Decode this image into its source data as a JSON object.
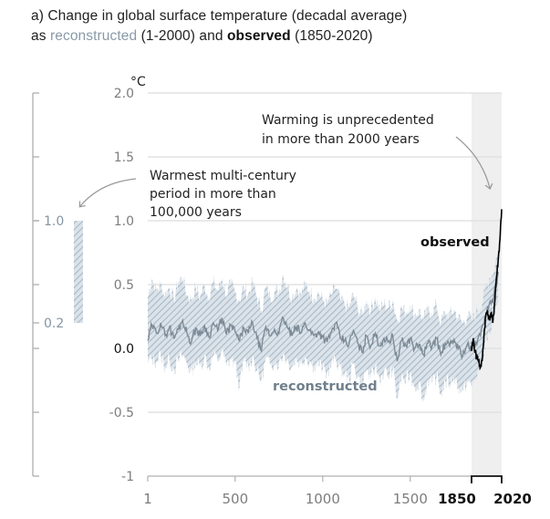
{
  "title": {
    "line1": "a) Change in global surface temperature (decadal average)",
    "line2_prefix": "as ",
    "line2_recon": "reconstructed",
    "line2_mid": " (1-2000) and ",
    "line2_obs": "observed",
    "line2_suffix": " (1850-2020)"
  },
  "colors": {
    "reconstructed_line": "#7d8b96",
    "reconstructed_band": "#b9c6d2",
    "observed_line": "#000000",
    "recent_shading": "#efefef",
    "grid": "#e2e2e2",
    "left_axis": "#b8b8b8",
    "left_label": "#8495a5"
  },
  "annotations": {
    "warmest_period": [
      "Warmest multi-century",
      "period in more than",
      "100,000 years"
    ],
    "unprecedented": [
      "Warming is unprecedented",
      "in more than 2000 years"
    ]
  },
  "chart_data": {
    "type": "line",
    "title": "Change in global surface temperature (decadal average) as reconstructed (1-2000) and observed (1850-2020)",
    "ylabel": "°C",
    "xlabel": "",
    "ylim": [
      -1,
      2
    ],
    "xlim": [
      1,
      2020
    ],
    "grid": true,
    "y_ticks": [
      "2.0",
      "1.5",
      "1.0",
      "0.5",
      "0.0",
      "-0.5",
      "-1"
    ],
    "y_tick_values": [
      2.0,
      1.5,
      1.0,
      0.5,
      0.0,
      -0.5,
      -1
    ],
    "x_ticks": [
      "1",
      "500",
      "1000",
      "1500"
    ],
    "x_tick_values": [
      1,
      500,
      1000,
      1500
    ],
    "x_ticks_bold": [
      "1850",
      "2020"
    ],
    "x_ticks_bold_values": [
      1850,
      2020
    ],
    "shaded_period": [
      1850,
      2020
    ],
    "series_labels": {
      "reconstructed": "reconstructed",
      "observed": "observed"
    },
    "series": [
      {
        "name": "reconstructed",
        "x": [
          1,
          25,
          50,
          75,
          100,
          125,
          150,
          175,
          200,
          225,
          250,
          275,
          300,
          325,
          350,
          375,
          400,
          425,
          450,
          475,
          500,
          525,
          550,
          575,
          600,
          625,
          650,
          675,
          700,
          725,
          750,
          775,
          800,
          825,
          850,
          875,
          900,
          925,
          950,
          975,
          1000,
          1025,
          1050,
          1075,
          1100,
          1125,
          1150,
          1175,
          1200,
          1225,
          1250,
          1275,
          1300,
          1325,
          1350,
          1375,
          1400,
          1425,
          1450,
          1475,
          1500,
          1525,
          1550,
          1575,
          1600,
          1625,
          1650,
          1675,
          1700,
          1725,
          1750,
          1775,
          1800,
          1825,
          1850,
          1875,
          1900,
          1925,
          1950,
          1975,
          2000
        ],
        "values": [
          0.06,
          0.18,
          0.12,
          0.2,
          0.1,
          0.17,
          0.08,
          0.15,
          0.22,
          0.12,
          0.05,
          0.16,
          0.1,
          0.18,
          0.09,
          0.2,
          0.14,
          0.24,
          0.11,
          0.18,
          0.13,
          0.06,
          0.16,
          0.12,
          0.2,
          0.08,
          -0.02,
          0.17,
          0.1,
          0.15,
          0.12,
          0.24,
          0.16,
          0.1,
          0.17,
          0.12,
          0.2,
          0.14,
          0.1,
          0.13,
          0.09,
          0.05,
          0.13,
          0.2,
          0.08,
          0.06,
          0.03,
          0.14,
          0.04,
          -0.03,
          0.1,
          0.02,
          0.12,
          0.02,
          0.08,
          0.05,
          0.1,
          -0.1,
          0.06,
          0.02,
          0.08,
          0.0,
          0.03,
          -0.05,
          0.04,
          0.02,
          0.08,
          -0.05,
          0.04,
          0.02,
          0.07,
          0.0,
          -0.05,
          0.03,
          -0.02,
          0.05,
          0.1,
          0.25,
          0.35,
          0.4,
          0.6
        ],
        "band_upper": [
          0.4,
          0.55,
          0.45,
          0.5,
          0.42,
          0.48,
          0.38,
          0.52,
          0.56,
          0.42,
          0.38,
          0.48,
          0.4,
          0.5,
          0.4,
          0.52,
          0.45,
          0.55,
          0.42,
          0.5,
          0.44,
          0.38,
          0.48,
          0.42,
          0.52,
          0.4,
          0.3,
          0.48,
          0.4,
          0.45,
          0.44,
          0.58,
          0.48,
          0.4,
          0.48,
          0.42,
          0.5,
          0.45,
          0.4,
          0.44,
          0.38,
          0.35,
          0.42,
          0.48,
          0.38,
          0.34,
          0.32,
          0.42,
          0.32,
          0.26,
          0.38,
          0.3,
          0.4,
          0.3,
          0.35,
          0.32,
          0.38,
          0.22,
          0.32,
          0.28,
          0.34,
          0.26,
          0.3,
          0.22,
          0.3,
          0.28,
          0.34,
          0.2,
          0.28,
          0.26,
          0.3,
          0.24,
          0.2,
          0.26,
          0.22,
          0.28,
          0.32,
          0.45,
          0.55,
          0.6,
          0.78
        ],
        "band_lower": [
          -0.12,
          -0.08,
          -0.1,
          -0.05,
          -0.15,
          -0.08,
          -0.16,
          -0.1,
          -0.05,
          -0.12,
          -0.18,
          -0.1,
          -0.14,
          -0.06,
          -0.16,
          -0.05,
          -0.1,
          -0.02,
          -0.14,
          -0.08,
          -0.12,
          -0.3,
          -0.1,
          -0.14,
          -0.06,
          -0.18,
          -0.25,
          -0.08,
          -0.14,
          -0.1,
          -0.12,
          -0.04,
          -0.1,
          -0.14,
          -0.08,
          -0.12,
          -0.06,
          -0.1,
          -0.14,
          -0.12,
          -0.16,
          -0.2,
          -0.12,
          -0.08,
          -0.16,
          -0.2,
          -0.24,
          -0.12,
          -0.22,
          -0.28,
          -0.16,
          -0.24,
          -0.14,
          -0.24,
          -0.18,
          -0.22,
          -0.16,
          -0.4,
          -0.22,
          -0.26,
          -0.2,
          -0.3,
          -0.26,
          -0.42,
          -0.24,
          -0.28,
          -0.22,
          -0.36,
          -0.26,
          -0.28,
          -0.22,
          -0.3,
          -0.34,
          -0.26,
          -0.3,
          -0.22,
          -0.14,
          0.02,
          0.12,
          0.18,
          0.35
        ]
      },
      {
        "name": "observed",
        "x": [
          1850,
          1860,
          1870,
          1880,
          1890,
          1900,
          1910,
          1920,
          1930,
          1940,
          1950,
          1960,
          1970,
          1980,
          1990,
          2000,
          2010,
          2020
        ],
        "values": [
          -0.02,
          0.08,
          -0.03,
          -0.06,
          -0.1,
          -0.15,
          -0.1,
          0.1,
          0.25,
          0.3,
          0.22,
          0.28,
          0.2,
          0.35,
          0.55,
          0.68,
          0.85,
          1.09
        ]
      }
    ],
    "side_panel": {
      "label": "Warmest multi-century period in more than 100,000 years",
      "range": [
        0.2,
        1.0
      ],
      "tick_labels": [
        "1.0",
        "0.2"
      ]
    }
  }
}
